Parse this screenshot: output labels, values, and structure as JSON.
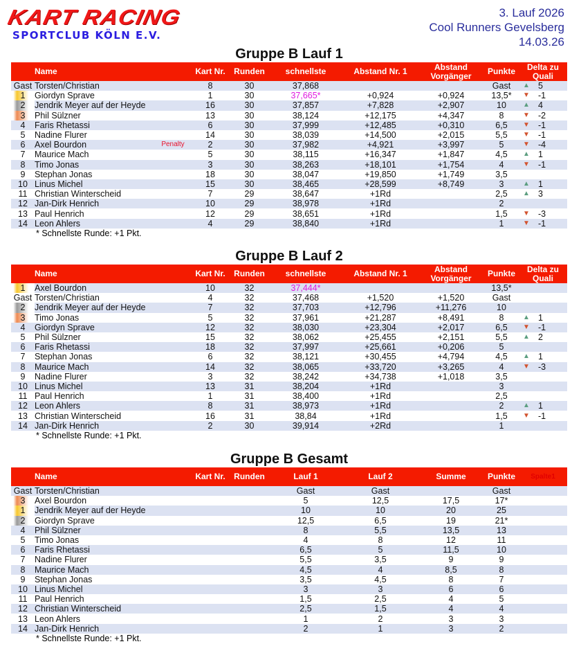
{
  "logo": {
    "main": "KART RACING",
    "sub": "SPORTCLUB KÖLN E.V."
  },
  "event": {
    "round": "3. Lauf 2026",
    "track": "Cool Runners Gevelsberg",
    "date": "14.03.26"
  },
  "colors": {
    "header_red": "#f41b00",
    "row_alt": "#dce2f2",
    "fastest_lap": "#e01be0",
    "penalty": "#e8102a",
    "up": "#5c9e80",
    "down": "#d2532f",
    "gold": "#f7c72e",
    "silver": "#9a9a9a",
    "bronze": "#ee8a52"
  },
  "tables": [
    {
      "title": "Gruppe B Lauf 1",
      "headers": [
        "",
        "Name",
        "",
        "Kart Nr.",
        "Runden",
        "schnellste",
        "Abstand Nr. 1",
        "Abstand Vorgänger",
        "Punkte",
        "Delta zu Quali"
      ],
      "rows": [
        [
          "Gast",
          "Torsten/Christian",
          "",
          "8",
          "30",
          "37,868",
          "",
          "",
          "Gast",
          "up",
          "5"
        ],
        [
          "1",
          "Giordyn Sprave",
          "",
          "1",
          "30",
          "37,665*",
          "+0,924",
          "+0,924",
          "13,5*",
          "down",
          "-1"
        ],
        [
          "2",
          "Jendrik Meyer auf der Heyde",
          "",
          "16",
          "30",
          "37,857",
          "+7,828",
          "+2,907",
          "10",
          "up",
          "4"
        ],
        [
          "3",
          "Phil Sülzner",
          "",
          "13",
          "30",
          "38,124",
          "+12,175",
          "+4,347",
          "8",
          "down",
          "-2"
        ],
        [
          "4",
          "Faris Rhetassi",
          "",
          "6",
          "30",
          "37,999",
          "+12,485",
          "+0,310",
          "6,5",
          "down",
          "-1"
        ],
        [
          "5",
          "Nadine Flurer",
          "",
          "14",
          "30",
          "38,039",
          "+14,500",
          "+2,015",
          "5,5",
          "down",
          "-1"
        ],
        [
          "6",
          "Axel Bourdon",
          "Penalty",
          "2",
          "30",
          "37,982",
          "+4,921",
          "+3,997",
          "5",
          "down",
          "-4"
        ],
        [
          "7",
          "Maurice Mach",
          "",
          "5",
          "30",
          "38,115",
          "+16,347",
          "+1,847",
          "4,5",
          "up",
          "1"
        ],
        [
          "8",
          "Timo Jonas",
          "",
          "3",
          "30",
          "38,263",
          "+18,101",
          "+1,754",
          "4",
          "down",
          "-1"
        ],
        [
          "9",
          "Stephan Jonas",
          "",
          "18",
          "30",
          "38,047",
          "+19,850",
          "+1,749",
          "3,5",
          "",
          ""
        ],
        [
          "10",
          "Linus Michel",
          "",
          "15",
          "30",
          "38,465",
          "+28,599",
          "+8,749",
          "3",
          "up",
          "1"
        ],
        [
          "11",
          "Christian Winterscheid",
          "",
          "7",
          "29",
          "38,647",
          "+1Rd",
          "",
          "2,5",
          "up",
          "3"
        ],
        [
          "12",
          "Jan-Dirk Henrich",
          "",
          "10",
          "29",
          "38,978",
          "+1Rd",
          "",
          "2",
          "",
          ""
        ],
        [
          "13",
          "Paul Henrich",
          "",
          "12",
          "29",
          "38,651",
          "+1Rd",
          "",
          "1,5",
          "down",
          "-3"
        ],
        [
          "14",
          "Leon Ahlers",
          "",
          "4",
          "29",
          "38,840",
          "+1Rd",
          "",
          "1",
          "down",
          "-1"
        ]
      ],
      "footnote": "* Schnellste Runde: +1 Pkt."
    },
    {
      "title": "Gruppe B Lauf 2",
      "headers": [
        "",
        "Name",
        "",
        "Kart Nr.",
        "Runden",
        "schnellste",
        "Abstand Nr. 1",
        "Abstand Vorgänger",
        "Punkte",
        "Delta zu Quali"
      ],
      "rows": [
        [
          "1",
          "Axel Bourdon",
          "",
          "10",
          "32",
          "37,444*",
          "",
          "",
          "13,5*",
          "",
          ""
        ],
        [
          "Gast",
          "Torsten/Christian",
          "",
          "4",
          "32",
          "37,468",
          "+1,520",
          "+1,520",
          "Gast",
          "",
          ""
        ],
        [
          "2",
          "Jendrik Meyer auf der Heyde",
          "",
          "7",
          "32",
          "37,703",
          "+12,796",
          "+11,276",
          "10",
          "",
          ""
        ],
        [
          "3",
          "Timo Jonas",
          "",
          "5",
          "32",
          "37,961",
          "+21,287",
          "+8,491",
          "8",
          "up",
          "1"
        ],
        [
          "4",
          "Giordyn Sprave",
          "",
          "12",
          "32",
          "38,030",
          "+23,304",
          "+2,017",
          "6,5",
          "down",
          "-1"
        ],
        [
          "5",
          "Phil Sülzner",
          "",
          "15",
          "32",
          "38,062",
          "+25,455",
          "+2,151",
          "5,5",
          "up",
          "2"
        ],
        [
          "6",
          "Faris Rhetassi",
          "",
          "18",
          "32",
          "37,997",
          "+25,661",
          "+0,206",
          "5",
          "",
          ""
        ],
        [
          "7",
          "Stephan Jonas",
          "",
          "6",
          "32",
          "38,121",
          "+30,455",
          "+4,794",
          "4,5",
          "up",
          "1"
        ],
        [
          "8",
          "Maurice Mach",
          "",
          "14",
          "32",
          "38,065",
          "+33,720",
          "+3,265",
          "4",
          "down",
          "-3"
        ],
        [
          "9",
          "Nadine Flurer",
          "",
          "3",
          "32",
          "38,242",
          "+34,738",
          "+1,018",
          "3,5",
          "",
          ""
        ],
        [
          "10",
          "Linus Michel",
          "",
          "13",
          "31",
          "38,204",
          "+1Rd",
          "",
          "3",
          "",
          ""
        ],
        [
          "11",
          "Paul Henrich",
          "",
          "1",
          "31",
          "38,400",
          "+1Rd",
          "",
          "2,5",
          "",
          ""
        ],
        [
          "12",
          "Leon Ahlers",
          "",
          "8",
          "31",
          "38,973",
          "+1Rd",
          "",
          "2",
          "up",
          "1"
        ],
        [
          "13",
          "Christian Winterscheid",
          "",
          "16",
          "31",
          "38,84",
          "+1Rd",
          "",
          "1,5",
          "down",
          "-1"
        ],
        [
          "14",
          "Jan-Dirk Henrich",
          "",
          "2",
          "30",
          "39,914",
          "+2Rd",
          "",
          "1",
          "",
          ""
        ]
      ],
      "footnote": "* Schnellste Runde: +1 Pkt."
    },
    {
      "title": "Gruppe B Gesamt",
      "headers": [
        "",
        "Name",
        "",
        "Kart Nr.",
        "Runden",
        "Lauf 1",
        "Lauf 2",
        "Summe",
        "Punkte",
        "Spalte1"
      ],
      "rows": [
        [
          "Gast",
          "Torsten/Christian",
          "",
          "",
          "",
          "Gast",
          "Gast",
          "",
          "Gast",
          "",
          ""
        ],
        [
          "3",
          "Axel Bourdon",
          "",
          "",
          "",
          "5",
          "12,5",
          "17,5",
          "17*",
          "",
          ""
        ],
        [
          "1",
          "Jendrik Meyer auf der Heyde",
          "",
          "",
          "",
          "10",
          "10",
          "20",
          "25",
          "",
          ""
        ],
        [
          "2",
          "Giordyn Sprave",
          "",
          "",
          "",
          "12,5",
          "6,5",
          "19",
          "21*",
          "",
          ""
        ],
        [
          "4",
          "Phil Sülzner",
          "",
          "",
          "",
          "8",
          "5,5",
          "13,5",
          "13",
          "",
          ""
        ],
        [
          "5",
          "Timo Jonas",
          "",
          "",
          "",
          "4",
          "8",
          "12",
          "11",
          "",
          ""
        ],
        [
          "6",
          "Faris Rhetassi",
          "",
          "",
          "",
          "6,5",
          "5",
          "11,5",
          "10",
          "",
          ""
        ],
        [
          "7",
          "Nadine Flurer",
          "",
          "",
          "",
          "5,5",
          "3,5",
          "9",
          "9",
          "",
          ""
        ],
        [
          "8",
          "Maurice Mach",
          "",
          "",
          "",
          "4,5",
          "4",
          "8,5",
          "8",
          "",
          ""
        ],
        [
          "9",
          "Stephan Jonas",
          "",
          "",
          "",
          "3,5",
          "4,5",
          "8",
          "7",
          "",
          ""
        ],
        [
          "10",
          "Linus Michel",
          "",
          "",
          "",
          "3",
          "3",
          "6",
          "6",
          "",
          ""
        ],
        [
          "11",
          "Paul Henrich",
          "",
          "",
          "",
          "1,5",
          "2,5",
          "4",
          "5",
          "",
          ""
        ],
        [
          "12",
          "Christian Winterscheid",
          "",
          "",
          "",
          "2,5",
          "1,5",
          "4",
          "4",
          "",
          ""
        ],
        [
          "13",
          "Leon Ahlers",
          "",
          "",
          "",
          "1",
          "2",
          "3",
          "3",
          "",
          ""
        ],
        [
          "14",
          "Jan-Dirk Henrich",
          "",
          "",
          "",
          "2",
          "1",
          "3",
          "2",
          "",
          ""
        ]
      ],
      "footnote": "* Schnellste Runde: +1 Pkt."
    }
  ]
}
